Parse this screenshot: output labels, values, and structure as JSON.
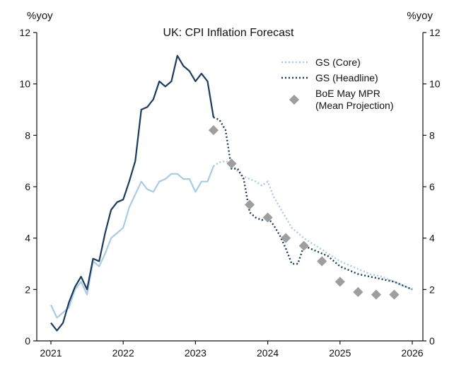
{
  "chart_data": {
    "type": "line",
    "title": "UK: CPI Inflation Forecast",
    "left_unit": "%yoy",
    "right_unit": "%yoy",
    "xlim": [
      2021,
      2026.2
    ],
    "ylim": [
      0,
      12
    ],
    "x_ticks": [
      2021,
      2022,
      2023,
      2024,
      2025,
      2026
    ],
    "y_ticks": [
      0,
      2,
      4,
      6,
      8,
      10,
      12
    ],
    "grid": false,
    "legend_position": "top-right",
    "colors": {
      "headline": "#1b3a5c",
      "core": "#a9cbe6",
      "boe": "#9e9e9e",
      "axis": "#111111"
    },
    "series": [
      {
        "name": "GS (Core)",
        "key": "core",
        "actual": [
          [
            2021.0,
            1.4
          ],
          [
            2021.083,
            0.9
          ],
          [
            2021.167,
            1.1
          ],
          [
            2021.25,
            1.3
          ],
          [
            2021.333,
            2.0
          ],
          [
            2021.417,
            2.3
          ],
          [
            2021.5,
            1.8
          ],
          [
            2021.583,
            3.1
          ],
          [
            2021.667,
            2.9
          ],
          [
            2021.75,
            3.4
          ],
          [
            2021.833,
            4.0
          ],
          [
            2021.917,
            4.2
          ],
          [
            2022.0,
            4.4
          ],
          [
            2022.083,
            5.2
          ],
          [
            2022.167,
            5.7
          ],
          [
            2022.25,
            6.2
          ],
          [
            2022.333,
            5.9
          ],
          [
            2022.417,
            5.8
          ],
          [
            2022.5,
            6.2
          ],
          [
            2022.583,
            6.3
          ],
          [
            2022.667,
            6.5
          ],
          [
            2022.75,
            6.5
          ],
          [
            2022.833,
            6.3
          ],
          [
            2022.917,
            6.3
          ],
          [
            2023.0,
            5.8
          ],
          [
            2023.083,
            6.2
          ],
          [
            2023.167,
            6.2
          ],
          [
            2023.25,
            6.8
          ]
        ],
        "forecast": [
          [
            2023.25,
            6.8
          ],
          [
            2023.333,
            6.95
          ],
          [
            2023.417,
            7.0
          ],
          [
            2023.5,
            6.9
          ],
          [
            2023.583,
            6.6
          ],
          [
            2023.667,
            6.4
          ],
          [
            2023.75,
            6.3
          ],
          [
            2023.833,
            6.2
          ],
          [
            2023.917,
            6.05
          ],
          [
            2024.0,
            6.2
          ],
          [
            2024.083,
            5.6
          ],
          [
            2024.167,
            5.2
          ],
          [
            2024.25,
            4.8
          ],
          [
            2024.333,
            4.4
          ],
          [
            2024.417,
            4.2
          ],
          [
            2024.5,
            4.0
          ],
          [
            2024.583,
            3.85
          ],
          [
            2024.667,
            3.7
          ],
          [
            2024.75,
            3.55
          ],
          [
            2024.833,
            3.4
          ],
          [
            2024.917,
            3.25
          ],
          [
            2025.0,
            3.1
          ],
          [
            2025.083,
            3.0
          ],
          [
            2025.167,
            2.9
          ],
          [
            2025.25,
            2.8
          ],
          [
            2025.333,
            2.7
          ],
          [
            2025.417,
            2.6
          ],
          [
            2025.5,
            2.55
          ],
          [
            2025.583,
            2.5
          ],
          [
            2025.667,
            2.4
          ],
          [
            2025.75,
            2.3
          ],
          [
            2025.833,
            2.2
          ],
          [
            2025.917,
            2.1
          ],
          [
            2026.0,
            2.0
          ]
        ]
      },
      {
        "name": "GS (Headline)",
        "key": "headline",
        "actual": [
          [
            2021.0,
            0.7
          ],
          [
            2021.083,
            0.4
          ],
          [
            2021.167,
            0.7
          ],
          [
            2021.25,
            1.5
          ],
          [
            2021.333,
            2.1
          ],
          [
            2021.417,
            2.5
          ],
          [
            2021.5,
            2.0
          ],
          [
            2021.583,
            3.2
          ],
          [
            2021.667,
            3.1
          ],
          [
            2021.75,
            4.2
          ],
          [
            2021.833,
            5.1
          ],
          [
            2021.917,
            5.4
          ],
          [
            2022.0,
            5.5
          ],
          [
            2022.083,
            6.2
          ],
          [
            2022.167,
            7.0
          ],
          [
            2022.25,
            9.0
          ],
          [
            2022.333,
            9.1
          ],
          [
            2022.417,
            9.4
          ],
          [
            2022.5,
            10.1
          ],
          [
            2022.583,
            9.9
          ],
          [
            2022.667,
            10.1
          ],
          [
            2022.75,
            11.1
          ],
          [
            2022.833,
            10.7
          ],
          [
            2022.917,
            10.5
          ],
          [
            2023.0,
            10.1
          ],
          [
            2023.083,
            10.4
          ],
          [
            2023.167,
            10.1
          ],
          [
            2023.25,
            8.7
          ]
        ],
        "forecast": [
          [
            2023.25,
            8.7
          ],
          [
            2023.333,
            8.6
          ],
          [
            2023.417,
            8.2
          ],
          [
            2023.5,
            6.7
          ],
          [
            2023.583,
            6.7
          ],
          [
            2023.667,
            6.3
          ],
          [
            2023.75,
            5.0
          ],
          [
            2023.833,
            4.8
          ],
          [
            2023.917,
            4.7
          ],
          [
            2024.0,
            4.8
          ],
          [
            2024.083,
            4.5
          ],
          [
            2024.167,
            4.1
          ],
          [
            2024.25,
            3.6
          ],
          [
            2024.333,
            3.0
          ],
          [
            2024.417,
            3.0
          ],
          [
            2024.5,
            3.7
          ],
          [
            2024.583,
            3.6
          ],
          [
            2024.667,
            3.5
          ],
          [
            2024.75,
            3.4
          ],
          [
            2024.833,
            3.3
          ],
          [
            2024.917,
            3.1
          ],
          [
            2025.0,
            2.9
          ],
          [
            2025.083,
            2.8
          ],
          [
            2025.167,
            2.7
          ],
          [
            2025.25,
            2.6
          ],
          [
            2025.333,
            2.55
          ],
          [
            2025.417,
            2.5
          ],
          [
            2025.5,
            2.45
          ],
          [
            2025.583,
            2.4
          ],
          [
            2025.667,
            2.35
          ],
          [
            2025.75,
            2.3
          ],
          [
            2025.833,
            2.2
          ],
          [
            2025.917,
            2.1
          ],
          [
            2026.0,
            2.0
          ]
        ]
      },
      {
        "name": "BoE May MPR",
        "name_line2": "(Mean Projection)",
        "key": "boe",
        "type": "scatter",
        "points": [
          [
            2023.25,
            8.2
          ],
          [
            2023.5,
            6.9
          ],
          [
            2023.75,
            5.3
          ],
          [
            2024.0,
            4.8
          ],
          [
            2024.25,
            4.0
          ],
          [
            2024.5,
            3.7
          ],
          [
            2024.75,
            3.1
          ],
          [
            2025.0,
            2.3
          ],
          [
            2025.25,
            1.9
          ],
          [
            2025.5,
            1.8
          ],
          [
            2025.75,
            1.8
          ]
        ]
      }
    ]
  }
}
